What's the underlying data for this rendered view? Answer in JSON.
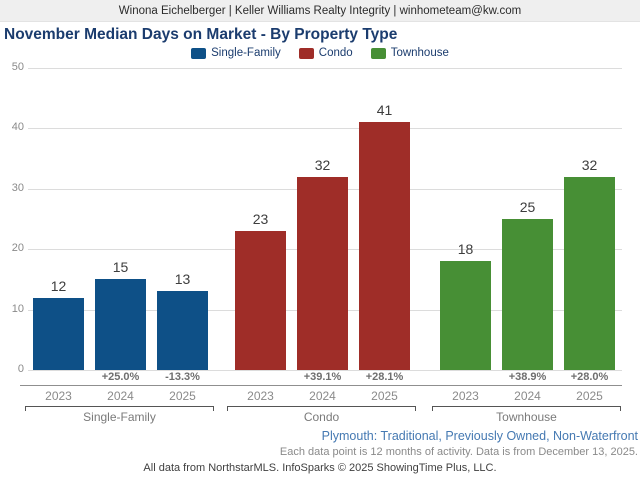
{
  "header": {
    "text": "Winona Eichelberger | Keller Williams Realty Integrity | winhometeam@kw.com"
  },
  "chart_data": {
    "type": "bar",
    "title": "November Median Days on Market - By Property Type",
    "xlabel": "",
    "ylabel": "",
    "ylim": [
      0,
      50
    ],
    "yticks": [
      0,
      10,
      20,
      30,
      40,
      50
    ],
    "grid": true,
    "legend_position": "top",
    "groups": [
      {
        "name": "Single-Family",
        "color": "#0e5087",
        "categories": [
          "2023",
          "2024",
          "2025"
        ],
        "values": [
          12,
          15,
          13
        ],
        "pct_change": [
          "",
          "+25.0%",
          "-13.3%"
        ]
      },
      {
        "name": "Condo",
        "color": "#9f2d28",
        "categories": [
          "2023",
          "2024",
          "2025"
        ],
        "values": [
          23,
          32,
          41
        ],
        "pct_change": [
          "",
          "+39.1%",
          "+28.1%"
        ]
      },
      {
        "name": "Townhouse",
        "color": "#478f35",
        "categories": [
          "2023",
          "2024",
          "2025"
        ],
        "values": [
          18,
          25,
          32
        ],
        "pct_change": [
          "",
          "+38.9%",
          "+28.0%"
        ]
      }
    ]
  },
  "footer": {
    "filters": "Plymouth: Traditional, Previously Owned, Non-Waterfront",
    "data_note": "Each data point is 12 months of activity. Data is from December 13, 2025.",
    "attribution": "All data from NorthstarMLS. InfoSparks © 2025 ShowingTime Plus, LLC."
  }
}
